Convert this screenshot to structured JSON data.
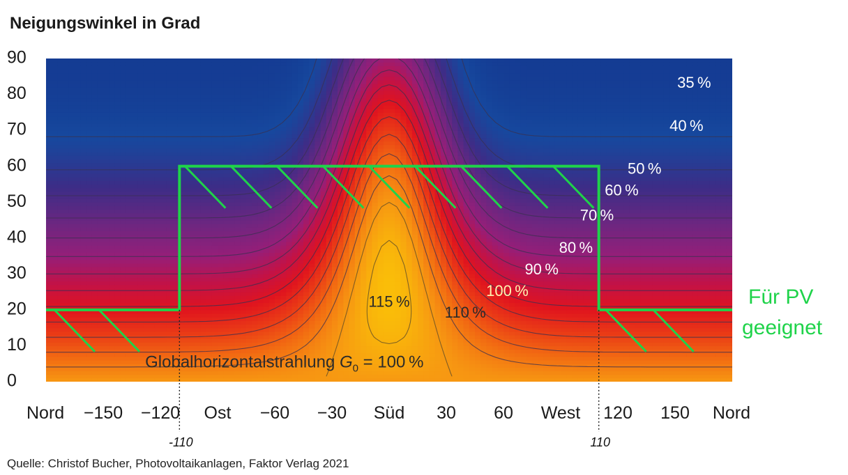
{
  "chart_data": {
    "type": "heatmap",
    "title": "Neigungswinkel in Grad",
    "x_ticks": [
      {
        "value": -180,
        "label": "Nord"
      },
      {
        "value": -150,
        "label": "−150"
      },
      {
        "value": -120,
        "label": "−120"
      },
      {
        "value": -90,
        "label": "Ost"
      },
      {
        "value": -60,
        "label": "−60"
      },
      {
        "value": -30,
        "label": "−30"
      },
      {
        "value": 0,
        "label": "Süd"
      },
      {
        "value": 30,
        "label": "30"
      },
      {
        "value": 60,
        "label": "60"
      },
      {
        "value": 90,
        "label": "West"
      },
      {
        "value": 120,
        "label": "120"
      },
      {
        "value": 150,
        "label": "150"
      },
      {
        "value": 180,
        "label": "Nord"
      }
    ],
    "y_ticks": [
      0,
      10,
      20,
      30,
      40,
      50,
      60,
      70,
      80,
      90
    ],
    "xlim": [
      -180,
      180
    ],
    "ylim": [
      0,
      90
    ],
    "contour_labels": [
      {
        "text": "35 %",
        "x": 160,
        "y": 83
      },
      {
        "text": "40 %",
        "x": 156,
        "y": 71
      },
      {
        "text": "50 %",
        "x": 134,
        "y": 59
      },
      {
        "text": "60 %",
        "x": 122,
        "y": 53
      },
      {
        "text": "70 %",
        "x": 109,
        "y": 46
      },
      {
        "text": "80 %",
        "x": 98,
        "y": 37
      },
      {
        "text": "90 %",
        "x": 80,
        "y": 31
      },
      {
        "text": "100 %",
        "x": 62,
        "y": 25
      },
      {
        "text": "110 %",
        "x": 40,
        "y": 19
      },
      {
        "text": "115 %",
        "x": 0,
        "y": 22
      }
    ],
    "annotation_ghi": {
      "prefix": "Globalhorizontalstrahlung ",
      "symbol": "G",
      "subscript": "0",
      "suffix": " = 100 %",
      "x": -128,
      "y": 4
    },
    "suitable_region": {
      "label_lines": [
        "Für PV",
        "geeignet"
      ],
      "boundary": [
        [
          -180,
          20
        ],
        [
          -110,
          20
        ],
        [
          -110,
          60
        ],
        [
          110,
          60
        ],
        [
          110,
          20
        ],
        [
          180,
          20
        ]
      ],
      "color": "#1fd34a"
    },
    "azimuth_markers": [
      {
        "value": -110,
        "label": "-110"
      },
      {
        "value": 110,
        "label": "110"
      }
    ],
    "source": "Quelle: Christof Bucher, Photovoltaikanlagen, Faktor Verlag 2021"
  }
}
